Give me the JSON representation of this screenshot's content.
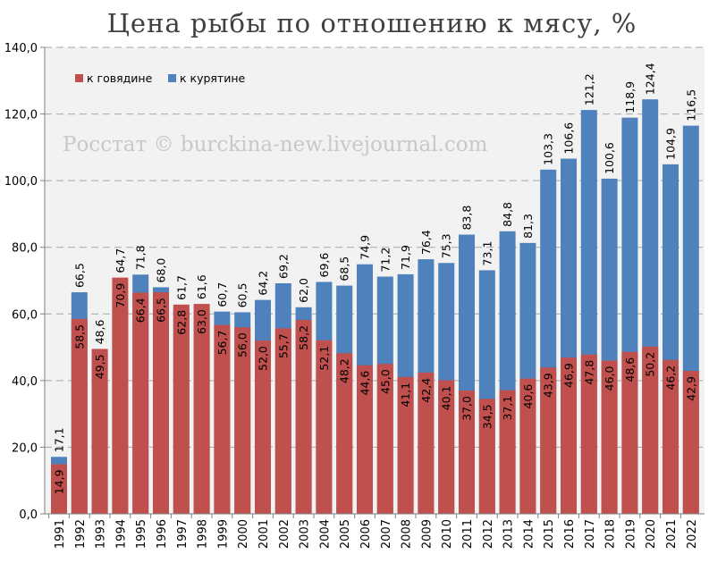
{
  "chart_data": {
    "type": "bar",
    "title": "Цена рыбы по отношению к мясу, %",
    "watermark": "Росстат © burckina-new.livejournal.com",
    "categories": [
      "1991",
      "1992",
      "1993",
      "1994",
      "1995",
      "1996",
      "1997",
      "1998",
      "1999",
      "2000",
      "2001",
      "2002",
      "2003",
      "2004",
      "2005",
      "2006",
      "2007",
      "2008",
      "2009",
      "2010",
      "2011",
      "2012",
      "2013",
      "2014",
      "2015",
      "2016",
      "2017",
      "2018",
      "2019",
      "2020",
      "2021",
      "2022"
    ],
    "series": [
      {
        "name": "к говядине",
        "color": "#c0504d",
        "values": [
          14.9,
          58.5,
          49.5,
          70.9,
          66.4,
          66.5,
          62.8,
          63.0,
          56.7,
          56.0,
          52.0,
          55.7,
          58.2,
          52.1,
          48.2,
          44.6,
          45.0,
          41.1,
          42.4,
          40.1,
          37.0,
          34.5,
          37.1,
          40.6,
          43.9,
          46.9,
          47.8,
          46.0,
          48.6,
          50.2,
          46.2,
          42.9
        ]
      },
      {
        "name": "к курятине",
        "color": "#4f81bd",
        "values": [
          17.1,
          66.5,
          48.6,
          64.7,
          71.8,
          68.0,
          61.7,
          61.6,
          60.7,
          60.5,
          64.2,
          69.2,
          62.0,
          69.6,
          68.5,
          74.9,
          71.2,
          71.9,
          76.4,
          75.3,
          83.8,
          73.1,
          84.8,
          81.3,
          103.3,
          106.6,
          121.2,
          100.6,
          118.9,
          124.4,
          104.9,
          116.5
        ]
      }
    ],
    "ylim": [
      0,
      140
    ],
    "yticks": [
      "0,0",
      "20,0",
      "40,0",
      "60,0",
      "80,0",
      "100,0",
      "120,0",
      "140,0"
    ],
    "grid": true,
    "legend": "top-left",
    "bar_mode": "overlapped"
  }
}
